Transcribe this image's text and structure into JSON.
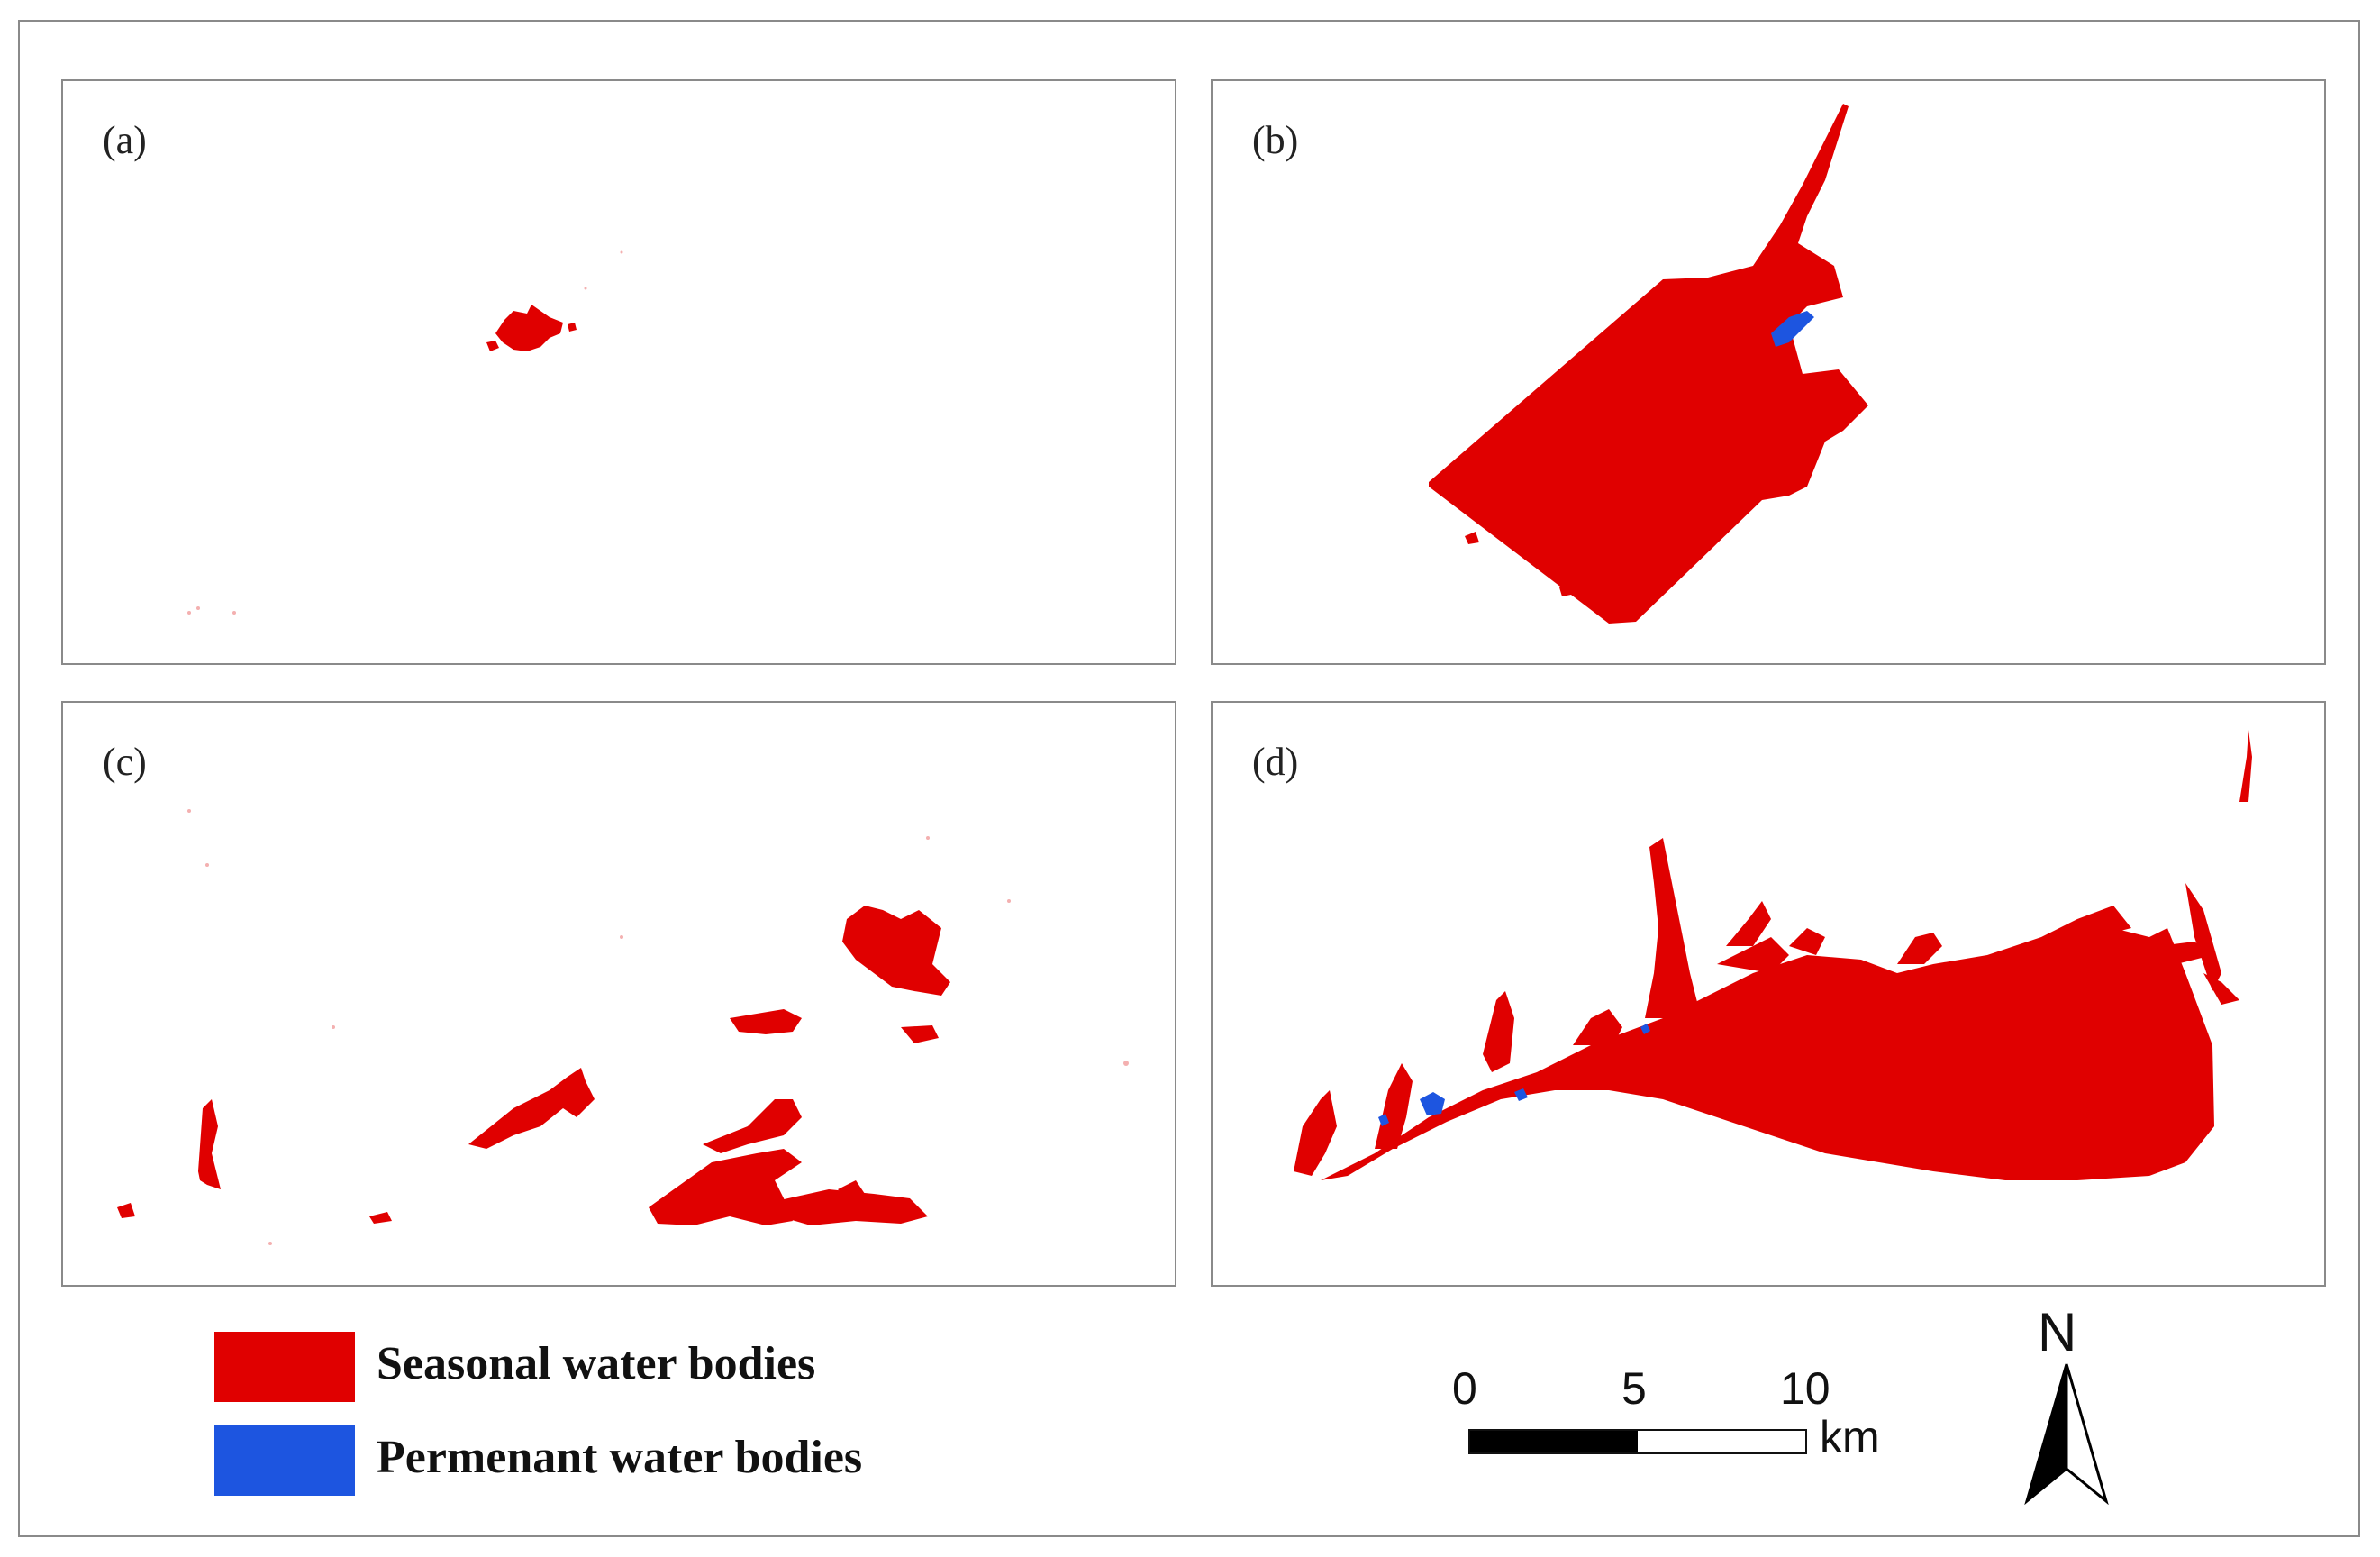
{
  "colors": {
    "seasonal": "#e00000",
    "permanent": "#1d55e0",
    "border": "#8a8a8a",
    "background": "#ffffff"
  },
  "panels": [
    {
      "label": "(a)"
    },
    {
      "label": "(b)"
    },
    {
      "label": "(c)"
    },
    {
      "label": "(d)"
    }
  ],
  "legend": {
    "seasonal_label": "Seasonal water bodies",
    "permanent_label": "Permenant water bodies"
  },
  "scale_bar": {
    "tick_0": "0",
    "tick_5": "5",
    "tick_10": "10",
    "unit": "km"
  },
  "north_arrow": {
    "label": "N",
    "icon": "north-arrow-icon"
  }
}
